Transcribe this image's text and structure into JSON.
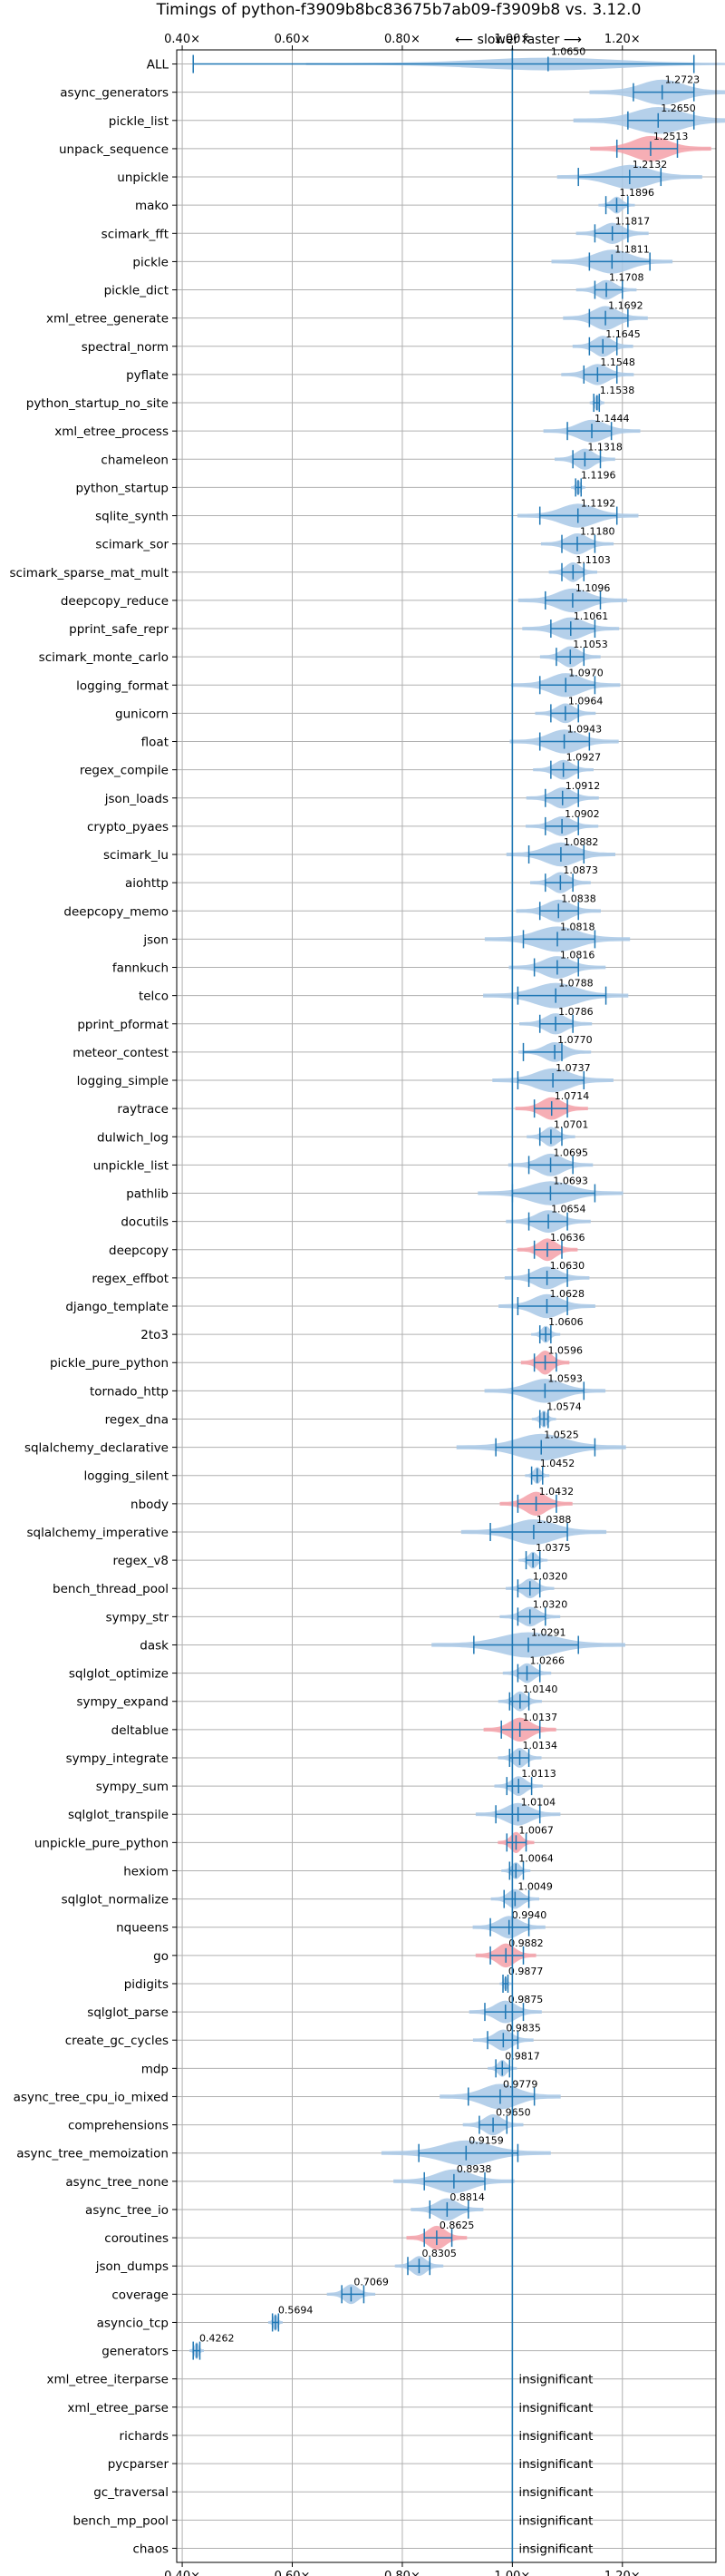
{
  "chart_data": {
    "type": "violin",
    "title": "Timings of python-f3909b8bc83675b7ab09-f3909b8 vs. 3.12.0",
    "direction_label": "⟵ slower   faster ⟶",
    "xlim": [
      0.39,
      1.37
    ],
    "x_ticks": [
      {
        "value": 0.4,
        "label": "0.40×"
      },
      {
        "value": 0.6,
        "label": "0.60×"
      },
      {
        "value": 0.8,
        "label": "0.80×"
      },
      {
        "value": 1.0,
        "label": "1.00×"
      },
      {
        "value": 1.2,
        "label": "1.20×"
      }
    ],
    "reference_line": 1.0,
    "colors": {
      "normal": "#1f77b4",
      "violin": "#a8c8e6",
      "slower": "#f4a0a8",
      "grid": "#b0b0b0"
    },
    "insignificant_label": "insignificant",
    "benchmarks": [
      {
        "name": "ALL",
        "mean": 1.065,
        "label": "1.0650",
        "lo": 0.42,
        "hi": 1.33,
        "spread": 0.2,
        "w": 0.45,
        "hl": false
      },
      {
        "name": "async_generators",
        "mean": 1.2723,
        "label": "1.2723",
        "lo": 1.22,
        "hi": 1.33,
        "spread": 0.06,
        "w": 0.9,
        "hl": false
      },
      {
        "name": "pickle_list",
        "mean": 1.265,
        "label": "1.2650",
        "lo": 1.21,
        "hi": 1.33,
        "spread": 0.07,
        "w": 0.95,
        "hl": false
      },
      {
        "name": "unpack_sequence",
        "mean": 1.2513,
        "label": "1.2513",
        "lo": 1.19,
        "hi": 1.3,
        "spread": 0.05,
        "w": 0.9,
        "hl": true
      },
      {
        "name": "unpickle",
        "mean": 1.2132,
        "label": "1.2132",
        "lo": 1.12,
        "hi": 1.27,
        "spread": 0.06,
        "w": 0.85,
        "hl": false
      },
      {
        "name": "mako",
        "mean": 1.1896,
        "label": "1.1896",
        "lo": 1.17,
        "hi": 1.21,
        "spread": 0.015,
        "w": 0.6,
        "hl": false
      },
      {
        "name": "scimark_fft",
        "mean": 1.1817,
        "label": "1.1817",
        "lo": 1.15,
        "hi": 1.21,
        "spread": 0.03,
        "w": 0.75,
        "hl": false
      },
      {
        "name": "pickle",
        "mean": 1.1811,
        "label": "1.1811",
        "lo": 1.14,
        "hi": 1.25,
        "spread": 0.05,
        "w": 0.85,
        "hl": false
      },
      {
        "name": "pickle_dict",
        "mean": 1.1708,
        "label": "1.1708",
        "lo": 1.15,
        "hi": 1.2,
        "spread": 0.025,
        "w": 0.7,
        "hl": false
      },
      {
        "name": "xml_etree_generate",
        "mean": 1.1692,
        "label": "1.1692",
        "lo": 1.14,
        "hi": 1.21,
        "spread": 0.035,
        "w": 0.85,
        "hl": false
      },
      {
        "name": "spectral_norm",
        "mean": 1.1645,
        "label": "1.1645",
        "lo": 1.14,
        "hi": 1.19,
        "spread": 0.025,
        "w": 0.75,
        "hl": false
      },
      {
        "name": "pyflate",
        "mean": 1.1548,
        "label": "1.1548",
        "lo": 1.13,
        "hi": 1.19,
        "spread": 0.03,
        "w": 0.75,
        "hl": false
      },
      {
        "name": "python_startup_no_site",
        "mean": 1.1538,
        "label": "1.1538",
        "lo": 1.148,
        "hi": 1.158,
        "spread": 0.006,
        "w": 0.6,
        "hl": false
      },
      {
        "name": "xml_etree_process",
        "mean": 1.1444,
        "label": "1.1444",
        "lo": 1.1,
        "hi": 1.18,
        "spread": 0.04,
        "w": 0.8,
        "hl": false
      },
      {
        "name": "chameleon",
        "mean": 1.1318,
        "label": "1.1318",
        "lo": 1.11,
        "hi": 1.16,
        "spread": 0.025,
        "w": 0.75,
        "hl": false
      },
      {
        "name": "python_startup",
        "mean": 1.1196,
        "label": "1.1196",
        "lo": 1.115,
        "hi": 1.125,
        "spread": 0.006,
        "w": 0.55,
        "hl": false
      },
      {
        "name": "sqlite_synth",
        "mean": 1.1192,
        "label": "1.1192",
        "lo": 1.05,
        "hi": 1.19,
        "spread": 0.05,
        "w": 0.85,
        "hl": false
      },
      {
        "name": "scimark_sor",
        "mean": 1.118,
        "label": "1.1180",
        "lo": 1.09,
        "hi": 1.15,
        "spread": 0.03,
        "w": 0.75,
        "hl": false
      },
      {
        "name": "scimark_sparse_mat_mult",
        "mean": 1.1103,
        "label": "1.1103",
        "lo": 1.09,
        "hi": 1.13,
        "spread": 0.02,
        "w": 0.7,
        "hl": false
      },
      {
        "name": "deepcopy_reduce",
        "mean": 1.1096,
        "label": "1.1096",
        "lo": 1.06,
        "hi": 1.16,
        "spread": 0.045,
        "w": 0.85,
        "hl": false
      },
      {
        "name": "pprint_safe_repr",
        "mean": 1.1061,
        "label": "1.1061",
        "lo": 1.07,
        "hi": 1.15,
        "spread": 0.04,
        "w": 0.8,
        "hl": false
      },
      {
        "name": "scimark_monte_carlo",
        "mean": 1.1053,
        "label": "1.1053",
        "lo": 1.08,
        "hi": 1.13,
        "spread": 0.025,
        "w": 0.75,
        "hl": false
      },
      {
        "name": "logging_format",
        "mean": 1.097,
        "label": "1.0970",
        "lo": 1.05,
        "hi": 1.15,
        "spread": 0.045,
        "w": 0.85,
        "hl": false
      },
      {
        "name": "gunicorn",
        "mean": 1.0964,
        "label": "1.0964",
        "lo": 1.07,
        "hi": 1.12,
        "spread": 0.025,
        "w": 0.7,
        "hl": false
      },
      {
        "name": "float",
        "mean": 1.0943,
        "label": "1.0943",
        "lo": 1.05,
        "hi": 1.14,
        "spread": 0.045,
        "w": 0.85,
        "hl": false
      },
      {
        "name": "regex_compile",
        "mean": 1.0927,
        "label": "1.0927",
        "lo": 1.07,
        "hi": 1.12,
        "spread": 0.025,
        "w": 0.7,
        "hl": false
      },
      {
        "name": "json_loads",
        "mean": 1.0912,
        "label": "1.0912",
        "lo": 1.06,
        "hi": 1.12,
        "spread": 0.03,
        "w": 0.75,
        "hl": false
      },
      {
        "name": "crypto_pyaes",
        "mean": 1.0902,
        "label": "1.0902",
        "lo": 1.06,
        "hi": 1.12,
        "spread": 0.03,
        "w": 0.7,
        "hl": false
      },
      {
        "name": "scimark_lu",
        "mean": 1.0882,
        "label": "1.0882",
        "lo": 1.03,
        "hi": 1.13,
        "spread": 0.045,
        "w": 0.85,
        "hl": false
      },
      {
        "name": "aiohttp",
        "mean": 1.0873,
        "label": "1.0873",
        "lo": 1.06,
        "hi": 1.11,
        "spread": 0.025,
        "w": 0.75,
        "hl": false
      },
      {
        "name": "deepcopy_memo",
        "mean": 1.0838,
        "label": "1.0838",
        "lo": 1.05,
        "hi": 1.12,
        "spread": 0.035,
        "w": 0.8,
        "hl": false
      },
      {
        "name": "json",
        "mean": 1.0818,
        "label": "1.0818",
        "lo": 1.02,
        "hi": 1.15,
        "spread": 0.06,
        "w": 0.9,
        "hl": false
      },
      {
        "name": "fannkuch",
        "mean": 1.0816,
        "label": "1.0816",
        "lo": 1.04,
        "hi": 1.12,
        "spread": 0.04,
        "w": 0.8,
        "hl": false
      },
      {
        "name": "telco",
        "mean": 1.0788,
        "label": "1.0788",
        "lo": 1.01,
        "hi": 1.17,
        "spread": 0.06,
        "w": 0.9,
        "hl": false
      },
      {
        "name": "pprint_pformat",
        "mean": 1.0786,
        "label": "1.0786",
        "lo": 1.05,
        "hi": 1.11,
        "spread": 0.03,
        "w": 0.75,
        "hl": false
      },
      {
        "name": "meteor_contest",
        "mean": 1.077,
        "label": "1.0770",
        "lo": 1.02,
        "hi": 1.09,
        "spread": 0.03,
        "w": 0.7,
        "hl": false
      },
      {
        "name": "logging_simple",
        "mean": 1.0737,
        "label": "1.0737",
        "lo": 1.01,
        "hi": 1.13,
        "spread": 0.05,
        "w": 0.85,
        "hl": false
      },
      {
        "name": "raytrace",
        "mean": 1.0714,
        "label": "1.0714",
        "lo": 1.04,
        "hi": 1.1,
        "spread": 0.03,
        "w": 0.8,
        "hl": true
      },
      {
        "name": "dulwich_log",
        "mean": 1.0701,
        "label": "1.0701",
        "lo": 1.05,
        "hi": 1.09,
        "spread": 0.02,
        "w": 0.7,
        "hl": false
      },
      {
        "name": "unpickle_list",
        "mean": 1.0695,
        "label": "1.0695",
        "lo": 1.03,
        "hi": 1.11,
        "spread": 0.035,
        "w": 0.8,
        "hl": false
      },
      {
        "name": "pathlib",
        "mean": 1.0693,
        "label": "1.0693",
        "lo": 1.0,
        "hi": 1.15,
        "spread": 0.06,
        "w": 0.85,
        "hl": false
      },
      {
        "name": "docutils",
        "mean": 1.0654,
        "label": "1.0654",
        "lo": 1.03,
        "hi": 1.1,
        "spread": 0.035,
        "w": 0.8,
        "hl": false
      },
      {
        "name": "deepcopy",
        "mean": 1.0636,
        "label": "1.0636",
        "lo": 1.04,
        "hi": 1.09,
        "spread": 0.025,
        "w": 0.8,
        "hl": true
      },
      {
        "name": "regex_effbot",
        "mean": 1.063,
        "label": "1.0630",
        "lo": 1.03,
        "hi": 1.1,
        "spread": 0.035,
        "w": 0.8,
        "hl": false
      },
      {
        "name": "django_template",
        "mean": 1.0628,
        "label": "1.0628",
        "lo": 1.01,
        "hi": 1.1,
        "spread": 0.04,
        "w": 0.85,
        "hl": false
      },
      {
        "name": "2to3",
        "mean": 1.0606,
        "label": "1.0606",
        "lo": 1.05,
        "hi": 1.07,
        "spread": 0.012,
        "w": 0.6,
        "hl": false
      },
      {
        "name": "pickle_pure_python",
        "mean": 1.0596,
        "label": "1.0596",
        "lo": 1.04,
        "hi": 1.08,
        "spread": 0.02,
        "w": 0.85,
        "hl": true
      },
      {
        "name": "tornado_http",
        "mean": 1.0593,
        "label": "1.0593",
        "lo": 1.0,
        "hi": 1.13,
        "spread": 0.05,
        "w": 0.85,
        "hl": false
      },
      {
        "name": "regex_dna",
        "mean": 1.0574,
        "label": "1.0574",
        "lo": 1.05,
        "hi": 1.065,
        "spread": 0.01,
        "w": 0.6,
        "hl": false
      },
      {
        "name": "sqlalchemy_declarative",
        "mean": 1.0525,
        "label": "1.0525",
        "lo": 0.97,
        "hi": 1.15,
        "spread": 0.07,
        "w": 0.95,
        "hl": false
      },
      {
        "name": "logging_silent",
        "mean": 1.0452,
        "label": "1.0452",
        "lo": 1.035,
        "hi": 1.055,
        "spread": 0.01,
        "w": 0.6,
        "hl": false
      },
      {
        "name": "nbody",
        "mean": 1.0432,
        "label": "1.0432",
        "lo": 1.01,
        "hi": 1.08,
        "spread": 0.03,
        "w": 0.85,
        "hl": true
      },
      {
        "name": "sqlalchemy_imperative",
        "mean": 1.0388,
        "label": "1.0388",
        "lo": 0.96,
        "hi": 1.1,
        "spread": 0.06,
        "w": 0.9,
        "hl": false
      },
      {
        "name": "regex_v8",
        "mean": 1.0375,
        "label": "1.0375",
        "lo": 1.025,
        "hi": 1.05,
        "spread": 0.012,
        "w": 0.6,
        "hl": false
      },
      {
        "name": "bench_thread_pool",
        "mean": 1.032,
        "label": "1.0320",
        "lo": 1.01,
        "hi": 1.05,
        "spread": 0.02,
        "w": 0.7,
        "hl": false
      },
      {
        "name": "sympy_str",
        "mean": 1.032,
        "label": "1.0320",
        "lo": 1.01,
        "hi": 1.06,
        "spread": 0.025,
        "w": 0.7,
        "hl": false
      },
      {
        "name": "dask",
        "mean": 1.0291,
        "label": "1.0291",
        "lo": 0.93,
        "hi": 1.12,
        "spread": 0.08,
        "w": 0.9,
        "hl": false
      },
      {
        "name": "sqlglot_optimize",
        "mean": 1.0266,
        "label": "1.0266",
        "lo": 1.01,
        "hi": 1.05,
        "spread": 0.02,
        "w": 0.7,
        "hl": false
      },
      {
        "name": "sympy_expand",
        "mean": 1.014,
        "label": "1.0140",
        "lo": 0.995,
        "hi": 1.03,
        "spread": 0.018,
        "w": 0.7,
        "hl": false
      },
      {
        "name": "deltablue",
        "mean": 1.0137,
        "label": "1.0137",
        "lo": 0.98,
        "hi": 1.05,
        "spread": 0.03,
        "w": 0.85,
        "hl": true
      },
      {
        "name": "sympy_integrate",
        "mean": 1.0134,
        "label": "1.0134",
        "lo": 0.995,
        "hi": 1.03,
        "spread": 0.018,
        "w": 0.7,
        "hl": false
      },
      {
        "name": "sympy_sum",
        "mean": 1.0113,
        "label": "1.0113",
        "lo": 0.99,
        "hi": 1.035,
        "spread": 0.02,
        "w": 0.7,
        "hl": false
      },
      {
        "name": "sqlglot_transpile",
        "mean": 1.0104,
        "label": "1.0104",
        "lo": 0.97,
        "hi": 1.05,
        "spread": 0.035,
        "w": 0.8,
        "hl": false
      },
      {
        "name": "unpickle_pure_python",
        "mean": 1.0067,
        "label": "1.0067",
        "lo": 0.99,
        "hi": 1.025,
        "spread": 0.015,
        "w": 0.75,
        "hl": true
      },
      {
        "name": "hexiom",
        "mean": 1.0064,
        "label": "1.0064",
        "lo": 0.995,
        "hi": 1.02,
        "spread": 0.012,
        "w": 0.6,
        "hl": false
      },
      {
        "name": "sqlglot_normalize",
        "mean": 1.0049,
        "label": "1.0049",
        "lo": 0.985,
        "hi": 1.03,
        "spread": 0.02,
        "w": 0.7,
        "hl": false
      },
      {
        "name": "nqueens",
        "mean": 0.994,
        "label": "0.9940",
        "lo": 0.96,
        "hi": 1.03,
        "spread": 0.03,
        "w": 0.8,
        "hl": false
      },
      {
        "name": "go",
        "mean": 0.9882,
        "label": "0.9882",
        "lo": 0.96,
        "hi": 1.02,
        "spread": 0.025,
        "w": 0.85,
        "hl": true
      },
      {
        "name": "pidigits",
        "mean": 0.9877,
        "label": "0.9877",
        "lo": 0.983,
        "hi": 0.992,
        "spread": 0.005,
        "w": 0.5,
        "hl": false
      },
      {
        "name": "sqlglot_parse",
        "mean": 0.9875,
        "label": "0.9875",
        "lo": 0.95,
        "hi": 1.02,
        "spread": 0.03,
        "w": 0.8,
        "hl": false
      },
      {
        "name": "create_gc_cycles",
        "mean": 0.9835,
        "label": "0.9835",
        "lo": 0.955,
        "hi": 1.01,
        "spread": 0.025,
        "w": 0.75,
        "hl": false
      },
      {
        "name": "mdp",
        "mean": 0.9817,
        "label": "0.9817",
        "lo": 0.97,
        "hi": 0.995,
        "spread": 0.012,
        "w": 0.6,
        "hl": false
      },
      {
        "name": "async_tree_cpu_io_mixed",
        "mean": 0.9779,
        "label": "0.9779",
        "lo": 0.92,
        "hi": 1.04,
        "spread": 0.05,
        "w": 0.9,
        "hl": false
      },
      {
        "name": "comprehensions",
        "mean": 0.965,
        "label": "0.9650",
        "lo": 0.94,
        "hi": 0.99,
        "spread": 0.025,
        "w": 0.75,
        "hl": false
      },
      {
        "name": "async_tree_memoization",
        "mean": 0.9159,
        "label": "0.9159",
        "lo": 0.83,
        "hi": 1.01,
        "spread": 0.07,
        "w": 0.9,
        "hl": false
      },
      {
        "name": "async_tree_none",
        "mean": 0.8938,
        "label": "0.8938",
        "lo": 0.84,
        "hi": 0.95,
        "spread": 0.05,
        "w": 0.85,
        "hl": false
      },
      {
        "name": "async_tree_io",
        "mean": 0.8814,
        "label": "0.8814",
        "lo": 0.85,
        "hi": 0.92,
        "spread": 0.03,
        "w": 0.8,
        "hl": false
      },
      {
        "name": "coroutines",
        "mean": 0.8625,
        "label": "0.8625",
        "lo": 0.84,
        "hi": 0.89,
        "spread": 0.025,
        "w": 0.85,
        "hl": true
      },
      {
        "name": "json_dumps",
        "mean": 0.8305,
        "label": "0.8305",
        "lo": 0.81,
        "hi": 0.85,
        "spread": 0.02,
        "w": 0.7,
        "hl": false
      },
      {
        "name": "coverage",
        "mean": 0.7069,
        "label": "0.7069",
        "lo": 0.69,
        "hi": 0.73,
        "spread": 0.02,
        "w": 0.7,
        "hl": false
      },
      {
        "name": "asyncio_tcp",
        "mean": 0.5694,
        "label": "0.5694",
        "lo": 0.564,
        "hi": 0.575,
        "spread": 0.006,
        "w": 0.6,
        "hl": false
      },
      {
        "name": "generators",
        "mean": 0.4262,
        "label": "0.4262",
        "lo": 0.42,
        "hi": 0.432,
        "spread": 0.006,
        "w": 0.6,
        "hl": false
      },
      {
        "name": "xml_etree_iterparse",
        "insignificant": true
      },
      {
        "name": "xml_etree_parse",
        "insignificant": true
      },
      {
        "name": "richards",
        "insignificant": true
      },
      {
        "name": "pycparser",
        "insignificant": true
      },
      {
        "name": "gc_traversal",
        "insignificant": true
      },
      {
        "name": "bench_mp_pool",
        "insignificant": true
      },
      {
        "name": "chaos",
        "insignificant": true
      }
    ]
  }
}
